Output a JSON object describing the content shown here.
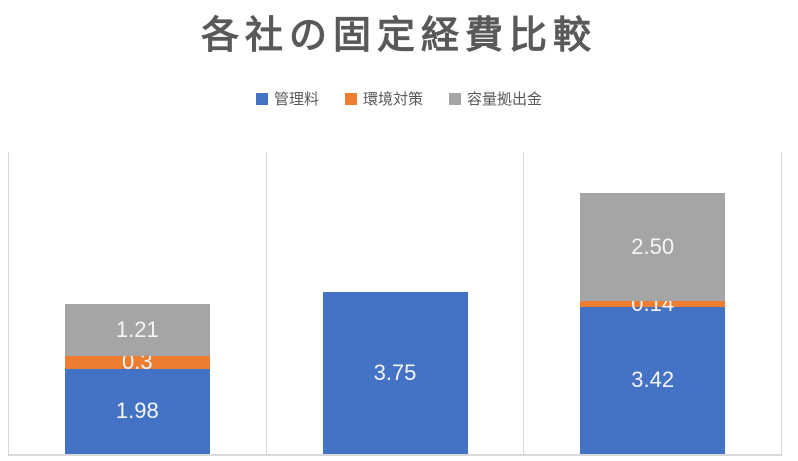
{
  "chart_data": {
    "type": "bar",
    "stacked": true,
    "title": "各社の固定経費比較",
    "categories": [
      "",
      "",
      ""
    ],
    "category_labels_visible": false,
    "series": [
      {
        "name": "管理料",
        "color": "#4472C4",
        "values": [
          1.98,
          3.75,
          3.42
        ],
        "labels": [
          "1.98",
          "3.75",
          "3.42"
        ]
      },
      {
        "name": "環境対策",
        "color": "#ED7D31",
        "values": [
          0.3,
          0,
          0.14
        ],
        "labels": [
          "0.3",
          "",
          "0.14"
        ]
      },
      {
        "name": "容量拠出金",
        "color": "#A5A5A5",
        "values": [
          1.21,
          0,
          2.5
        ],
        "labels": [
          "1.21",
          "",
          "2.50"
        ]
      }
    ],
    "ylim": [
      0,
      7
    ],
    "y_axis_visible": false,
    "legend_position": "top",
    "legend_marker": "square",
    "gridlines": "vertical lines at category boundaries",
    "colors": {
      "gridline": "#D9D9D9",
      "axis_line": "#D9D9D9",
      "title_text": "#595959",
      "legend_text": "#595959",
      "data_label_text": "#F5F5F5",
      "background": "#FFFFFF"
    }
  }
}
